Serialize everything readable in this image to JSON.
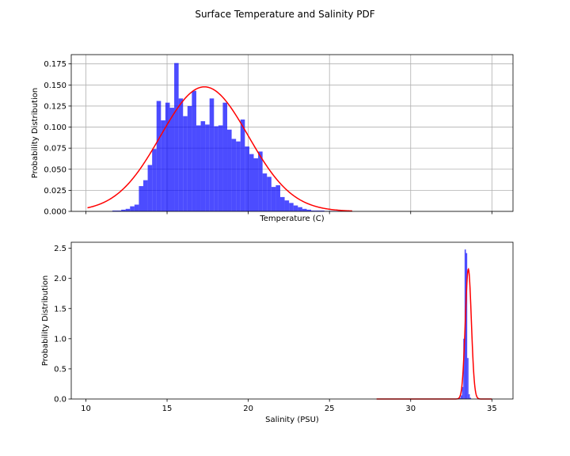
{
  "figure": {
    "suptitle": "Surface Temperature and Salinity PDF"
  },
  "chart_data": [
    {
      "type": "bar",
      "subtype": "histogram with fitted normal curve",
      "xlabel": "Temperature (C)",
      "ylabel": "Probability Distribution",
      "xlim": [
        9.1,
        36.3
      ],
      "ylim": [
        0,
        0.186
      ],
      "grid": true,
      "x_tick_labels_shown": false,
      "x_ticks": [
        10,
        15,
        20,
        25,
        30,
        35
      ],
      "y_ticks": [
        "0.000",
        "0.025",
        "0.050",
        "0.075",
        "0.100",
        "0.125",
        "0.150",
        "0.175"
      ],
      "hist_color": "#0000ff",
      "hist_alpha": 0.7,
      "curve_color": "#ff0000",
      "bins": {
        "start": 10.0,
        "width": 0.272,
        "values": [
          0,
          0,
          0,
          0,
          0,
          0,
          0.001,
          0.001,
          0.002,
          0.003,
          0.006,
          0.008,
          0.03,
          0.037,
          0.055,
          0.074,
          0.131,
          0.108,
          0.129,
          0.123,
          0.176,
          0.134,
          0.113,
          0.125,
          0.143,
          0.102,
          0.107,
          0.103,
          0.134,
          0.101,
          0.102,
          0.129,
          0.097,
          0.086,
          0.083,
          0.109,
          0.077,
          0.068,
          0.063,
          0.071,
          0.045,
          0.041,
          0.029,
          0.031,
          0.017,
          0.013,
          0.01,
          0.007,
          0.005,
          0.003,
          0.002,
          0.001,
          0.001,
          0.001,
          0.0005,
          0.0005,
          0.0005,
          0.0005,
          0,
          0
        ]
      },
      "fit": {
        "distribution": "normal",
        "mean": 17.3,
        "std": 2.7,
        "x_range": [
          10.1,
          26.4
        ]
      }
    },
    {
      "type": "bar",
      "subtype": "histogram with fitted normal curve",
      "xlabel": "Salinity (PSU)",
      "ylabel": "Probability Distribution",
      "xlim": [
        9.1,
        36.3
      ],
      "ylim": [
        0,
        2.6
      ],
      "grid": false,
      "x_ticks": [
        10,
        15,
        20,
        25,
        30,
        35
      ],
      "y_ticks": [
        "0.0",
        "0.5",
        "1.0",
        "1.5",
        "2.0",
        "2.5"
      ],
      "hist_color": "#0000ff",
      "hist_alpha": 0.7,
      "curve_color": "#ff0000",
      "bins": {
        "start": 33.0,
        "width": 0.08,
        "values": [
          0.02,
          0.06,
          0.2,
          1.0,
          2.48,
          2.42,
          0.68,
          0.08,
          0.02,
          0.0
        ]
      },
      "fit": {
        "distribution": "normal",
        "mean": 33.55,
        "std": 0.185,
        "x_range": [
          27.9,
          35.0
        ]
      }
    }
  ]
}
